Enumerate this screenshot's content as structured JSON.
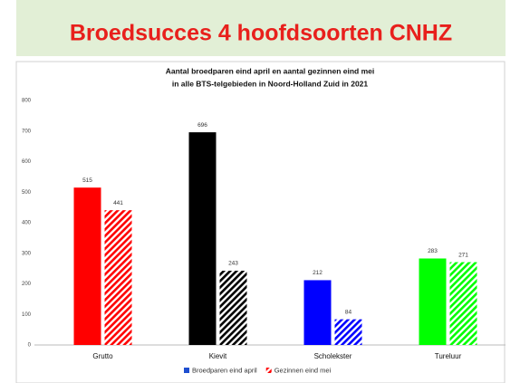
{
  "slide_title": "Broedsucces 4 hoofdsoorten CNHZ",
  "chart_data": {
    "type": "bar",
    "title": [
      "Aantal broedparen eind april en aantal gezinnen eind mei",
      "in alle BTS-telgebieden in Noord-Holland Zuid in 2021"
    ],
    "categories": [
      "Grutto",
      "Kievit",
      "Scholekster",
      "Tureluur"
    ],
    "colors": [
      "#ff0000",
      "#000000",
      "#0000ff",
      "#00ff00"
    ],
    "series": [
      {
        "name": "Broedparen eind april",
        "color": "#1f4fd0",
        "values": [
          515,
          696,
          212,
          283
        ]
      },
      {
        "name": "Gezinnen eind mei",
        "color": "#ff0000",
        "values": [
          441,
          243,
          84,
          271
        ]
      }
    ],
    "ylim": [
      0,
      800
    ],
    "yticks": [
      0,
      100,
      200,
      300,
      400,
      500,
      600,
      700,
      800
    ],
    "grid": false
  }
}
